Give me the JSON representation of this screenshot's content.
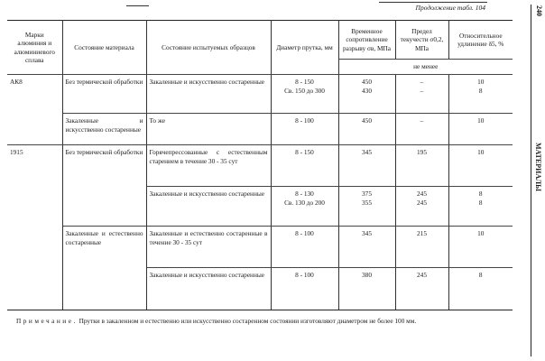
{
  "page": {
    "continuation": "Продолжение табл. 104",
    "page_number": "240",
    "section": "МАТЕРИАЛЫ"
  },
  "header": {
    "grade": "Марки алюминия и алюминиевого сплава",
    "material_state": "Состояние материала",
    "sample_state": "Состояние испытуемых образцов",
    "diameter": "Диаметр прутка, мм",
    "tensile": "Временное сопротивление разрыву σв, МПа",
    "yield": "Предел текучести σ0,2, МПа",
    "elongation": "Относительное удлинение δ5, %",
    "not_less": "не менее"
  },
  "rows": [
    {
      "grade": "АК8",
      "material_state": "Без термической обработки",
      "sample_state": "Закаленные и искусственно состаренные",
      "diameter": [
        "8 - 150",
        "Св. 150 до 300"
      ],
      "tensile": [
        "450",
        "430"
      ],
      "yield": [
        "–",
        "–"
      ],
      "elongation": [
        "10",
        "8"
      ]
    },
    {
      "grade": "",
      "material_state": "Закаленные и искусственно состаренные",
      "sample_state": "То же",
      "diameter": [
        "8 - 100"
      ],
      "tensile": [
        "450"
      ],
      "yield": [
        "–"
      ],
      "elongation": [
        "10"
      ]
    },
    {
      "grade": "1915",
      "material_state": "Без термической обработки",
      "sample_state": "Горячепрессованные с естественным старением в течение 30 - 35 сут",
      "diameter": [
        "8 - 150"
      ],
      "tensile": [
        "345"
      ],
      "yield": [
        "195"
      ],
      "elongation": [
        "10"
      ]
    },
    {
      "grade": "",
      "material_state": "",
      "sample_state": "Закаленные и искусственно состаренные",
      "diameter": [
        "8 - 130",
        "Св. 130 до 200"
      ],
      "tensile": [
        "375",
        "355"
      ],
      "yield": [
        "245",
        "245"
      ],
      "elongation": [
        "8",
        "8"
      ]
    },
    {
      "grade": "",
      "material_state": "Закаленные и естественно состаренные",
      "sample_state": "Закаленные и естественно состаренные в течение 30 - 35 сут",
      "diameter": [
        "8 - 100"
      ],
      "tensile": [
        "345"
      ],
      "yield": [
        "215"
      ],
      "elongation": [
        "10"
      ]
    },
    {
      "grade": "",
      "material_state": "",
      "sample_state": "Закаленные и искусственно состаренные",
      "diameter": [
        "8 - 100"
      ],
      "tensile": [
        "380"
      ],
      "yield": [
        "245"
      ],
      "elongation": [
        "8"
      ]
    }
  ],
  "note": {
    "label": "Примечание.",
    "text": " Прутки в закаленном и естественно или искусственно состаренном состоянии изготовляют диаметром не более 100 мм."
  }
}
